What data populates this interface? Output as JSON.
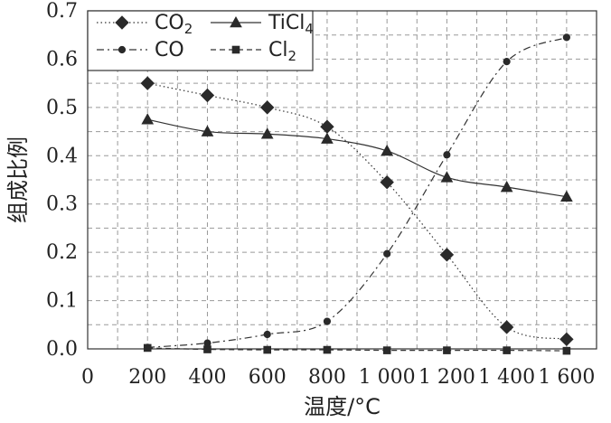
{
  "chart_data": {
    "type": "line",
    "xlabel": "温度/°C",
    "ylabel": "组成比例",
    "xlim": [
      0,
      1700
    ],
    "ylim": [
      0,
      0.7
    ],
    "x_ticks": [
      0,
      200,
      400,
      600,
      800,
      1000,
      1200,
      1400,
      1600
    ],
    "x_tick_labels": [
      "0",
      "200",
      "400",
      "600",
      "800",
      "1 000",
      "1 200",
      "1 400",
      "1 600"
    ],
    "y_ticks": [
      0,
      0.1,
      0.2,
      0.3,
      0.4,
      0.5,
      0.6,
      0.7
    ],
    "y_tick_labels": [
      "0.0",
      "0.1",
      "0.2",
      "0.3",
      "0.4",
      "0.5",
      "0.6",
      "0.7"
    ],
    "grid": true,
    "legend_position": "top-left",
    "x": [
      200,
      400,
      600,
      800,
      1000,
      1200,
      1400,
      1600
    ],
    "series": [
      {
        "name": "CO2",
        "name_main": "CO",
        "name_sub": "2",
        "marker": "diamond",
        "line": "dotted",
        "values": [
          0.55,
          0.525,
          0.5,
          0.46,
          0.345,
          0.195,
          0.045,
          0.02
        ]
      },
      {
        "name": "TiCl4",
        "name_main": "TiCl",
        "name_sub": "4",
        "marker": "triangle",
        "line": "solid",
        "values": [
          0.475,
          0.45,
          0.445,
          0.435,
          0.41,
          0.355,
          0.335,
          0.315
        ]
      },
      {
        "name": "CO",
        "name_main": "CO",
        "name_sub": "",
        "marker": "circle",
        "line": "dashdot",
        "values": [
          0.003,
          0.012,
          0.03,
          0.057,
          0.197,
          0.402,
          0.595,
          0.645
        ]
      },
      {
        "name": "Cl2",
        "name_main": "Cl",
        "name_sub": "2",
        "marker": "square",
        "line": "dashed",
        "values": [
          0.002,
          -0.001,
          -0.002,
          -0.002,
          -0.003,
          -0.003,
          -0.003,
          -0.004
        ]
      }
    ],
    "colors": {
      "line": "#333333",
      "marker": "#2a2a2a",
      "grid": "#9a9a9a"
    }
  }
}
